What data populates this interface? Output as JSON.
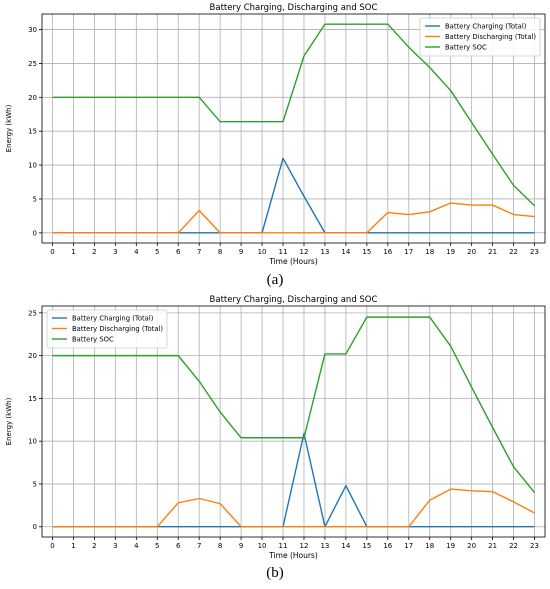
{
  "chart_data": [
    {
      "panel_label": "(a)",
      "type": "line",
      "title": "Battery Charging, Discharging and SOC",
      "xlabel": "Time (Hours)",
      "ylabel": "Energy (kWh)",
      "x": [
        0,
        1,
        2,
        3,
        4,
        5,
        6,
        7,
        8,
        9,
        10,
        11,
        12,
        13,
        14,
        15,
        16,
        17,
        18,
        19,
        20,
        21,
        22,
        23
      ],
      "xlim": [
        -0.5,
        23.5
      ],
      "ylim": [
        -1.5,
        32.3
      ],
      "yticks": [
        0,
        5,
        10,
        15,
        20,
        25,
        30
      ],
      "grid": true,
      "legend_position": "top-right",
      "series": [
        {
          "name": "Battery Charging (Total)",
          "color": "#1f77b4",
          "values": [
            0,
            0,
            0,
            0,
            0,
            0,
            0,
            0,
            0,
            0,
            0,
            11.0,
            5.4,
            0,
            0,
            0,
            0,
            0,
            0,
            0,
            0,
            0,
            0,
            0
          ]
        },
        {
          "name": "Battery Discharging (Total)",
          "color": "#ff7f0e",
          "values": [
            0,
            0,
            0,
            0,
            0,
            0,
            0,
            3.3,
            0,
            0,
            0,
            0,
            0,
            0,
            0,
            0,
            3.0,
            2.7,
            3.1,
            4.4,
            4.1,
            4.1,
            2.7,
            2.4
          ]
        },
        {
          "name": "Battery SOC",
          "color": "#2ca02c",
          "values": [
            20,
            20,
            20,
            20,
            20,
            20,
            20,
            20,
            16.4,
            16.4,
            16.4,
            16.4,
            26.1,
            30.8,
            30.8,
            30.8,
            30.8,
            27.4,
            24.4,
            21.0,
            16.3,
            11.6,
            7.0,
            4.0
          ]
        }
      ]
    },
    {
      "panel_label": "(b)",
      "type": "line",
      "title": "Battery Charging, Discharging and SOC",
      "xlabel": "Time (Hours)",
      "ylabel": "Energy (kWh)",
      "x": [
        0,
        1,
        2,
        3,
        4,
        5,
        6,
        7,
        8,
        9,
        10,
        11,
        12,
        13,
        14,
        15,
        16,
        17,
        18,
        19,
        20,
        21,
        22,
        23
      ],
      "xlim": [
        -0.5,
        23.5
      ],
      "ylim": [
        -1.2,
        25.8
      ],
      "yticks": [
        0,
        5,
        10,
        15,
        20,
        25
      ],
      "grid": true,
      "legend_position": "top-left",
      "series": [
        {
          "name": "Battery Charging (Total)",
          "color": "#1f77b4",
          "values": [
            0,
            0,
            0,
            0,
            0,
            0,
            0,
            0,
            0,
            0,
            0,
            0,
            10.9,
            0,
            4.8,
            0,
            0,
            0,
            0,
            0,
            0,
            0,
            0,
            0
          ]
        },
        {
          "name": "Battery Discharging (Total)",
          "color": "#ff7f0e",
          "values": [
            0,
            0,
            0,
            0,
            0,
            0,
            2.8,
            3.3,
            2.7,
            0,
            0,
            0,
            0,
            0,
            0,
            0,
            0,
            0,
            3.1,
            4.4,
            4.2,
            4.1,
            2.9,
            1.6
          ]
        },
        {
          "name": "Battery SOC",
          "color": "#2ca02c",
          "values": [
            20,
            20,
            20,
            20,
            20,
            20,
            20,
            17.0,
            13.4,
            10.4,
            10.4,
            10.4,
            10.4,
            20.2,
            20.2,
            24.5,
            24.5,
            24.5,
            24.5,
            21.1,
            16.3,
            11.6,
            7.0,
            4.0
          ]
        }
      ]
    }
  ]
}
